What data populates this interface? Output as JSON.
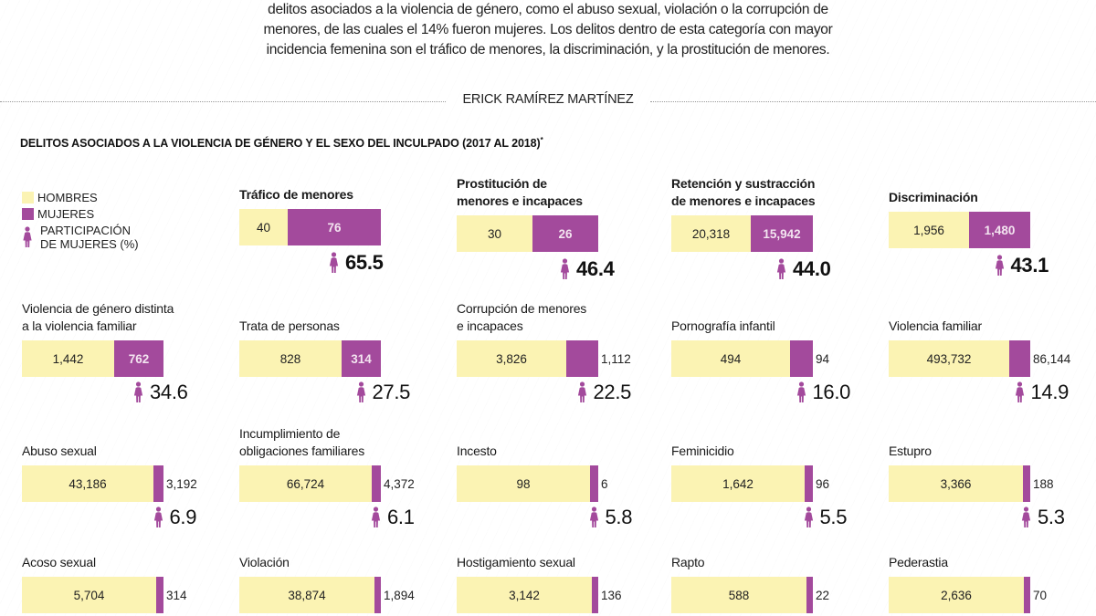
{
  "intro": {
    "lines": [
      "delitos asociados a  la violencia de género, como el abuso sexual, violación o la corrupción de",
      "menores, de las cuales el 14% fueron mujeres. Los delitos dentro de esta categoría con mayor",
      "incidencia femenina son el tráfico de menores, la discriminación, y la prostitución de menores."
    ]
  },
  "byline": "ERICK RAMÍREZ MARTÍNEZ",
  "colors": {
    "hombres": "#fbf3b3",
    "mujeres": "#a34a9c",
    "icon": "#a34a9c"
  },
  "legend": {
    "hombres": "HOMBRES",
    "mujeres": "MUJERES",
    "participacion_line1": "PARTICIPACIÓN",
    "participacion_line2": "DE MUJERES (%)"
  },
  "chart_data": {
    "type": "bar",
    "title": "DELITOS ASOCIADOS A LA VIOLENCIA DE GÉNERO Y EL SEXO DEL INCULPADO (2017 AL 2018)",
    "title_note": "*",
    "xlabel": "",
    "ylabel": "",
    "stacked": "100% horizontal",
    "series_names": [
      "Hombres",
      "Mujeres"
    ],
    "items": [
      {
        "title": [
          "Tráfico de menores"
        ],
        "hombres": 40,
        "mujeres": 76,
        "hombres_label": "40",
        "mujeres_label": "76",
        "pct": "65.5",
        "highlight": true
      },
      {
        "title": [
          "Prostitución de",
          "menores e incapaces"
        ],
        "hombres": 30,
        "mujeres": 26,
        "hombres_label": "30",
        "mujeres_label": "26",
        "pct": "46.4",
        "highlight": true
      },
      {
        "title": [
          "Retención y sustracción",
          "de menores e incapaces"
        ],
        "hombres": 20318,
        "mujeres": 15942,
        "hombres_label": "20,318",
        "mujeres_label": "15,942",
        "pct": "44.0",
        "highlight": true
      },
      {
        "title": [
          "Discriminación"
        ],
        "hombres": 1956,
        "mujeres": 1480,
        "hombres_label": "1,956",
        "mujeres_label": "1,480",
        "pct": "43.1",
        "highlight": true
      },
      {
        "title": [
          "Violencia de género distinta",
          "a la violencia familiar"
        ],
        "hombres": 1442,
        "mujeres": 762,
        "hombres_label": "1,442",
        "mujeres_label": "762",
        "pct": "34.6",
        "highlight": false
      },
      {
        "title": [
          "Trata de personas"
        ],
        "hombres": 828,
        "mujeres": 314,
        "hombres_label": "828",
        "mujeres_label": "314",
        "pct": "27.5",
        "highlight": false
      },
      {
        "title": [
          "Corrupción de menores",
          "e incapaces"
        ],
        "hombres": 3826,
        "mujeres": 1112,
        "hombres_label": "3,826",
        "mujeres_label": "1,112",
        "pct": "22.5",
        "highlight": false
      },
      {
        "title": [
          "Pornografía infantil"
        ],
        "hombres": 494,
        "mujeres": 94,
        "hombres_label": "494",
        "mujeres_label": "94",
        "pct": "16.0",
        "highlight": false
      },
      {
        "title": [
          "Violencia familiar"
        ],
        "hombres": 493732,
        "mujeres": 86144,
        "hombres_label": "493,732",
        "mujeres_label": "86,144",
        "pct": "14.9",
        "highlight": false
      },
      {
        "title": [
          "Abuso sexual"
        ],
        "hombres": 43186,
        "mujeres": 3192,
        "hombres_label": "43,186",
        "mujeres_label": "3,192",
        "pct": "6.9",
        "highlight": false
      },
      {
        "title": [
          "Incumplimiento de",
          "obligaciones familiares"
        ],
        "hombres": 66724,
        "mujeres": 4372,
        "hombres_label": "66,724",
        "mujeres_label": "4,372",
        "pct": "6.1",
        "highlight": false
      },
      {
        "title": [
          "Incesto"
        ],
        "hombres": 98,
        "mujeres": 6,
        "hombres_label": "98",
        "mujeres_label": "6",
        "pct": "5.8",
        "highlight": false
      },
      {
        "title": [
          "Feminicidio"
        ],
        "hombres": 1642,
        "mujeres": 96,
        "hombres_label": "1,642",
        "mujeres_label": "96",
        "pct": "5.5",
        "highlight": false
      },
      {
        "title": [
          "Estupro"
        ],
        "hombres": 3366,
        "mujeres": 188,
        "hombres_label": "3,366",
        "mujeres_label": "188",
        "pct": "5.3",
        "highlight": false
      },
      {
        "title": [
          "Acoso sexual"
        ],
        "hombres": 5704,
        "mujeres": 314,
        "hombres_label": "5,704",
        "mujeres_label": "314",
        "pct": null,
        "highlight": false
      },
      {
        "title": [
          "Violación"
        ],
        "hombres": 38874,
        "mujeres": 1894,
        "hombres_label": "38,874",
        "mujeres_label": "1,894",
        "pct": null,
        "highlight": false
      },
      {
        "title": [
          "Hostigamiento sexual"
        ],
        "hombres": 3142,
        "mujeres": 136,
        "hombres_label": "3,142",
        "mujeres_label": "136",
        "pct": null,
        "highlight": false
      },
      {
        "title": [
          "Rapto"
        ],
        "hombres": 588,
        "mujeres": 22,
        "hombres_label": "588",
        "mujeres_label": "22",
        "pct": null,
        "highlight": false
      },
      {
        "title": [
          "Pederastia"
        ],
        "hombres": 2636,
        "mujeres": 70,
        "hombres_label": "2,636",
        "mujeres_label": "70",
        "pct": null,
        "highlight": false
      }
    ]
  }
}
